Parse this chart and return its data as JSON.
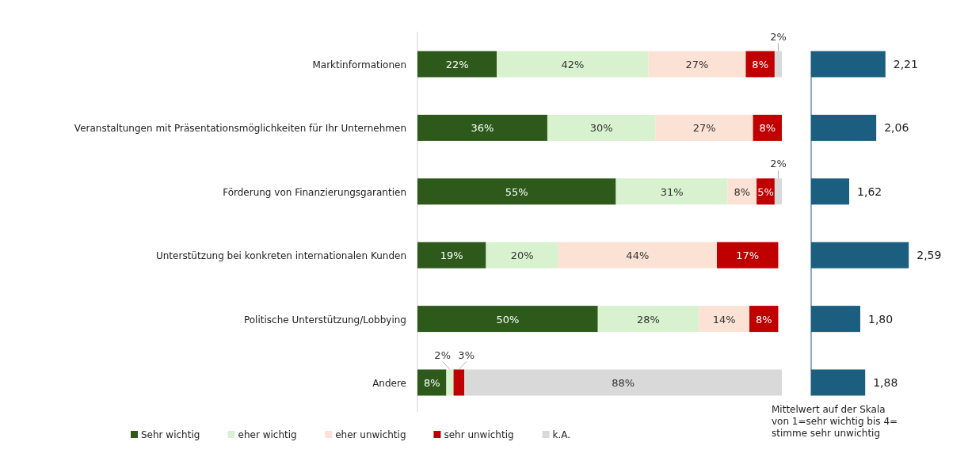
{
  "chart_data": [
    {
      "type": "bar",
      "orientation": "horizontal",
      "stacked": true,
      "xlim": [
        0,
        101
      ],
      "tick_labels": "y",
      "legend": "bottom",
      "categories": [
        "Marktinformationen",
        "Veranstaltungen mit Präsentationsmöglichkeiten für Ihr Unternehmen",
        "Förderung von Finanzierungsgarantien",
        "Unterstützung bei konkreten internationalen Kunden",
        "Politische Unterstützung/Lobbying",
        "Andere"
      ],
      "series": [
        {
          "name": "Sehr wichtig",
          "color": "#2d5a1b",
          "values": [
            22,
            36,
            55,
            19,
            50,
            8
          ],
          "value_labels": [
            "22%",
            "36%",
            "55%",
            "19%",
            "50%",
            "8%"
          ]
        },
        {
          "name": "eher wichtig",
          "color": "#d8f1cf",
          "values": [
            42,
            30,
            31,
            20,
            28,
            2
          ],
          "value_labels": [
            "42%",
            "30%",
            "31%",
            "20%",
            "28%",
            "2%"
          ]
        },
        {
          "name": "eher unwichtig",
          "color": "#fbe2d5",
          "values": [
            27,
            27,
            8,
            44,
            14,
            null
          ],
          "value_labels": [
            "27%",
            "27%",
            "8%",
            "44%",
            "14%",
            null
          ]
        },
        {
          "name": "sehr unwichtig",
          "color": "#c00000",
          "values": [
            8,
            8,
            5,
            17,
            8,
            3
          ],
          "value_labels": [
            "8%",
            "8%",
            "5%",
            "17%",
            "8%",
            "3%"
          ]
        },
        {
          "name": "k.A.",
          "color": "#d9d9d9",
          "values": [
            2,
            null,
            2,
            null,
            null,
            88
          ],
          "value_labels": [
            "2%",
            null,
            "2%",
            null,
            null,
            "88%"
          ]
        }
      ]
    },
    {
      "type": "bar",
      "orientation": "horizontal",
      "xlim": [
        1,
        2.6
      ],
      "tick_labels": false,
      "categories": [
        null,
        null,
        null,
        null,
        null,
        null
      ],
      "series": [
        {
          "color": "#1b5e80",
          "values": [
            2.21,
            2.06,
            1.62,
            2.59,
            1.8,
            1.88
          ],
          "value_labels": [
            "2,21",
            "2,06",
            "1,62",
            "2,59",
            "1,80",
            "1,88"
          ]
        }
      ],
      "annotations": [
        "Mittelwert auf der Skala von 1=sehr wichtig bis 4= stimme sehr unwichtig"
      ]
    }
  ]
}
